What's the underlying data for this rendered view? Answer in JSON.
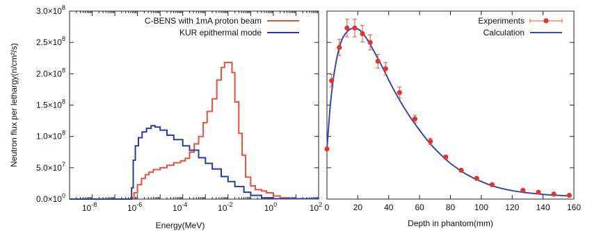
{
  "chart_data": [
    {
      "type": "line",
      "ylabel": "Neutron flux per lethargy(n/cm²/s)",
      "xlabel": "Energy(MeV)",
      "xscale": "log",
      "xlim": [
        1e-09,
        100
      ],
      "ylim": [
        0,
        300000000.0
      ],
      "legend_position": "top-right",
      "grid": false,
      "x_ticks": [
        {
          "value": 1e-08,
          "base": "10",
          "exp": "-8"
        },
        {
          "value": 1e-06,
          "base": "10",
          "exp": "-6"
        },
        {
          "value": 0.0001,
          "base": "10",
          "exp": "-4"
        },
        {
          "value": 0.01,
          "base": "10",
          "exp": "-2"
        },
        {
          "value": 1,
          "base": "10",
          "exp": "0"
        },
        {
          "value": 100,
          "base": "10",
          "exp": "2"
        }
      ],
      "y_ticks": [
        {
          "value": 0,
          "mant": "0.0×10",
          "exp": "0"
        },
        {
          "value": 50000000.0,
          "mant": "5.0×10",
          "exp": "7"
        },
        {
          "value": 100000000.0,
          "mant": "1.0×10",
          "exp": "8"
        },
        {
          "value": 150000000.0,
          "mant": "1.5×10",
          "exp": "8"
        },
        {
          "value": 200000000.0,
          "mant": "2.0×10",
          "exp": "8"
        },
        {
          "value": 250000000.0,
          "mant": "2.5×10",
          "exp": "8"
        },
        {
          "value": 300000000.0,
          "mant": "3.0×10",
          "exp": "8"
        }
      ],
      "series": [
        {
          "name": "C-BENS with 1mA proton beam",
          "color": "#e8503a",
          "style": "step",
          "points": [
            [
              1e-09,
              0
            ],
            [
              5e-07,
              0
            ],
            [
              7e-07,
              10000000.0
            ],
            [
              1e-06,
              23000000.0
            ],
            [
              1.5e-06,
              33000000.0
            ],
            [
              2.2e-06,
              39000000.0
            ],
            [
              3.2e-06,
              43000000.0
            ],
            [
              5e-06,
              47000000.0
            ],
            [
              1e-05,
              50000000.0
            ],
            [
              2e-05,
              54000000.0
            ],
            [
              4e-05,
              58000000.0
            ],
            [
              8e-05,
              61000000.0
            ],
            [
              0.00013,
              65000000.0
            ],
            [
              0.0002,
              75000000.0
            ],
            [
              0.00032,
              88000000.0
            ],
            [
              0.0005,
              100000000.0
            ],
            [
              0.0008,
              122000000.0
            ],
            [
              0.0012,
              140000000.0
            ],
            [
              0.002,
              160000000.0
            ],
            [
              0.0032,
              190000000.0
            ],
            [
              0.005,
              210000000.0
            ],
            [
              0.007,
              218000000.0
            ],
            [
              0.01,
              218000000.0
            ],
            [
              0.015,
              202000000.0
            ],
            [
              0.02,
              155000000.0
            ],
            [
              0.03,
              105000000.0
            ],
            [
              0.042,
              70000000.0
            ],
            [
              0.06,
              35000000.0
            ],
            [
              0.1,
              21000000.0
            ],
            [
              0.16,
              15000000.0
            ],
            [
              0.3,
              13000000.0
            ],
            [
              0.5,
              10000000.0
            ],
            [
              1.0,
              5000000.0
            ],
            [
              2.0,
              2000000.0
            ],
            [
              5.0,
              500000.0
            ],
            [
              100,
              0
            ]
          ]
        },
        {
          "name": "KUR epithermal mode",
          "color": "#2a3b9e",
          "style": "step",
          "points": [
            [
              1e-09,
              0
            ],
            [
              5e-07,
              0
            ],
            [
              5.5e-07,
              18000000.0
            ],
            [
              6.5e-07,
              62000000.0
            ],
            [
              8e-07,
              85000000.0
            ],
            [
              1.1e-06,
              98000000.0
            ],
            [
              1.6e-06,
              107000000.0
            ],
            [
              2.5e-06,
              113000000.0
            ],
            [
              4e-06,
              117000000.0
            ],
            [
              6e-06,
              115000000.0
            ],
            [
              1e-05,
              110000000.0
            ],
            [
              2e-05,
              102000000.0
            ],
            [
              4e-05,
              95000000.0
            ],
            [
              0.0001,
              85000000.0
            ],
            [
              0.0002,
              78000000.0
            ],
            [
              0.0005,
              66000000.0
            ],
            [
              0.001,
              57000000.0
            ],
            [
              0.002,
              48000000.0
            ],
            [
              0.005,
              36000000.0
            ],
            [
              0.01,
              28000000.0
            ],
            [
              0.02,
              20000000.0
            ],
            [
              0.05,
              11000000.0
            ],
            [
              0.1,
              6000000.0
            ],
            [
              0.3,
              2000000.0
            ],
            [
              1.0,
              500000.0
            ],
            [
              100,
              0
            ]
          ]
        }
      ]
    },
    {
      "type": "scatter",
      "xlabel": "Depth in phantom(mm)",
      "ylabel": "",
      "xlim": [
        0,
        160
      ],
      "ylim": [
        0,
        300000000.0
      ],
      "legend_position": "top-right",
      "grid": false,
      "x_ticks": [
        {
          "value": 0,
          "label": "0"
        },
        {
          "value": 20,
          "label": "20"
        },
        {
          "value": 40,
          "label": "40"
        },
        {
          "value": 60,
          "label": "60"
        },
        {
          "value": 80,
          "label": "80"
        },
        {
          "value": 100,
          "label": "100"
        },
        {
          "value": 120,
          "label": "120"
        },
        {
          "value": 140,
          "label": "140"
        },
        {
          "value": 160,
          "label": "160"
        }
      ],
      "series": [
        {
          "name": "Experiments",
          "color": "#e8503a",
          "style": "points-errorbars",
          "points": [
            [
              0,
              80000000.0,
              0
            ],
            [
              3,
              189000000.0,
              10000000.0
            ],
            [
              8,
              242000000.0,
              13000000.0
            ],
            [
              13,
              273000000.0,
              14000000.0
            ],
            [
              18,
              273000000.0,
              14000000.0
            ],
            [
              23,
              264000000.0,
              13000000.0
            ],
            [
              28,
              250000000.0,
              12000000.0
            ],
            [
              33,
              220000000.0,
              11000000.0
            ],
            [
              38,
              208000000.0,
              10000000.0
            ],
            [
              47,
              170000000.0,
              9000000.0
            ],
            [
              57,
              128000000.0,
              6000000.0
            ],
            [
              67,
              92000000.0,
              5000000.0
            ],
            [
              77,
              67000000.0,
              3000000.0
            ],
            [
              87,
              46000000.0,
              2000000.0
            ],
            [
              97,
              33000000.0,
              2000000.0
            ],
            [
              107,
              23000000.0,
              1500000.0
            ],
            [
              127,
              14000000.0,
              1000000.0
            ],
            [
              137,
              11000000.0,
              1000000.0
            ],
            [
              147,
              8000000.0,
              1000000.0
            ],
            [
              157,
              6000000.0,
              1000000.0
            ]
          ]
        },
        {
          "name": "Calculation",
          "color": "#3448b0",
          "style": "line",
          "points": [
            [
              0,
              80000000.0
            ],
            [
              2,
              145000000.0
            ],
            [
              4,
              190000000.0
            ],
            [
              6,
              220000000.0
            ],
            [
              8,
              242000000.0
            ],
            [
              10,
              256000000.0
            ],
            [
              13,
              267000000.0
            ],
            [
              16,
              272000000.0
            ],
            [
              19,
              272000000.0
            ],
            [
              22,
              268000000.0
            ],
            [
              26,
              255000000.0
            ],
            [
              30,
              238000000.0
            ],
            [
              35,
              215000000.0
            ],
            [
              40,
              190000000.0
            ],
            [
              45,
              167000000.0
            ],
            [
              50,
              146000000.0
            ],
            [
              55,
              127000000.0
            ],
            [
              60,
              110000000.0
            ],
            [
              65,
              94000000.0
            ],
            [
              70,
              80000000.0
            ],
            [
              75,
              68000000.0
            ],
            [
              80,
              57000000.0
            ],
            [
              90,
              40000000.0
            ],
            [
              100,
              28000000.0
            ],
            [
              110,
              19000000.0
            ],
            [
              120,
              13500000.0
            ],
            [
              130,
              10000000.0
            ],
            [
              140,
              7500000.0
            ],
            [
              150,
              6000000.0
            ],
            [
              157,
              5000000.0
            ]
          ]
        }
      ]
    }
  ]
}
